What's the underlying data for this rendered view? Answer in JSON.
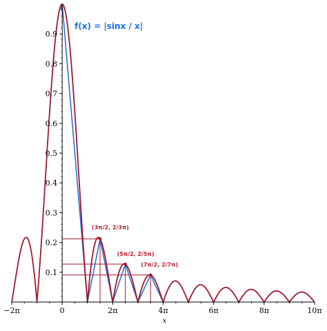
{
  "chart_data": {
    "type": "line",
    "title": "",
    "xlabel": "x",
    "ylabel": "",
    "xlim": [
      -6.2832,
      31.4159
    ],
    "ylim": [
      0,
      1
    ],
    "x_ticks": [
      {
        "value": -6.2832,
        "label": "−2π"
      },
      {
        "value": 0,
        "label": "0"
      },
      {
        "value": 6.2832,
        "label": "2π"
      },
      {
        "value": 12.5664,
        "label": "4π"
      },
      {
        "value": 18.8496,
        "label": "6π"
      },
      {
        "value": 25.1327,
        "label": "8π"
      },
      {
        "value": 31.4159,
        "label": "10π"
      }
    ],
    "y_ticks": [
      0.1,
      0.2,
      0.3,
      0.4,
      0.5,
      0.6,
      0.7,
      0.8,
      0.9
    ],
    "series": [
      {
        "name": "",
        "function": "|sin(x)/x|",
        "color": "#a0182b"
      },
      {
        "name": "",
        "function": "triangles through (nπ, 0) and peak points",
        "color": "#2f6fd6"
      }
    ],
    "peak_points": [
      {
        "x": 4.7124,
        "y": 0.2122,
        "label": "(3π/2, 2/3π)"
      },
      {
        "x": 7.854,
        "y": 0.1273,
        "label": "(5π/2, 2/5π)"
      },
      {
        "x": 10.9956,
        "y": 0.0909,
        "label": "(7π/2, 2/7π)"
      }
    ],
    "annotations": {
      "formula": "f(x) = |sinx / x|"
    }
  }
}
